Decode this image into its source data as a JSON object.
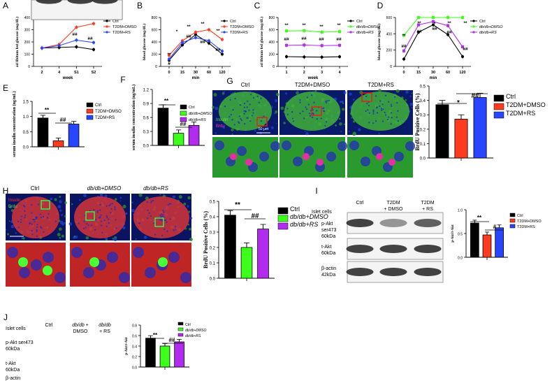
{
  "panels": {
    "A": {
      "letter": "A",
      "ylabel": "ad libitum fed glucose (mg/dL)",
      "xlabel": "week",
      "legend": [
        "Ctrl",
        "T2DM+DMSO",
        "T2DM+RS"
      ]
    },
    "B": {
      "letter": "B",
      "ylabel": "blood glucose (mg/dL)",
      "xlabel": "min",
      "legend": [
        "Ctrl",
        "T2DM+DMSO",
        "T2DM+RS"
      ]
    },
    "C": {
      "letter": "C",
      "ylabel": "ad libitum fed glucose (mg/dL)",
      "xlabel": "week",
      "legend": [
        "Ctrl",
        "db/db+DMSO",
        "db/db+RS"
      ]
    },
    "D": {
      "letter": "D",
      "ylabel": "blood glucose (mg/dL)",
      "xlabel": "min",
      "legend": [
        "Ctrl",
        "db/db+DMSO",
        "db/db+RS"
      ]
    },
    "E": {
      "letter": "E",
      "ylabel": "serum insulin concentration (ng/mL)",
      "legend": [
        "Ctrl",
        "T2DM+DMSO",
        "T2DM+RS"
      ]
    },
    "F": {
      "letter": "F",
      "ylabel": "serum insulin concentration (ng/mL)",
      "legend": [
        "Ctrl",
        "db/db+DMSO",
        "db/db+RS"
      ]
    },
    "G": {
      "letter": "G",
      "cols": [
        "Ctrl",
        "T2DM+DMSO",
        "T2DM+RS"
      ],
      "stain1": "Insulin",
      "stain2": "Brdu",
      "scale": "50 μm",
      "ylabel": "BrdU Positive Cells (%)",
      "legend": [
        "Ctrl",
        "T2DM+DMSO",
        "T2DM+RS"
      ]
    },
    "H": {
      "letter": "H",
      "cols": [
        "Ctrl",
        "db/db+DMSO",
        "db/db+RS"
      ],
      "stain1": "Insulin",
      "stain2": "Brdu",
      "ylabel": "BrdU Positive Cells (%)",
      "legend": [
        "Ctrl",
        "db/db+DMSO",
        "db/db+RS"
      ]
    },
    "I": {
      "letter": "I",
      "header": "Islet cells",
      "cols": [
        "Ctrl",
        "T2DM\n+ DMSO",
        "T2DM\n+ RS"
      ],
      "rows": [
        "p-Akt\nser473\n60kDa",
        "t-Akt\n60kDa",
        "β-actin\n42kDa"
      ],
      "ylabel": "p-Akt/t-Akt",
      "legend": [
        "Ctrl",
        "T2DM+DMSO",
        "T2DM+RS"
      ]
    },
    "J": {
      "letter": "J",
      "header": "Islet cells",
      "cols": [
        "Ctrl",
        "db/db +\nDMSO",
        "db/db\n+ RS"
      ],
      "rows": [
        "p-Akt ser473\n60kDa",
        "t-Akt\n60kDa",
        "β-actin\n42kDa"
      ],
      "ylabel": "p-Akt/t-Akt",
      "legend": [
        "Ctrl",
        "db/db+DMSO",
        "db/db+RS"
      ]
    }
  },
  "colors": {
    "ctrl": "#000000",
    "red": "#ff3b1f",
    "blue": "#2846ff",
    "green": "#3cff1c",
    "purple": "#b22cf0",
    "tissue_green": "#3fb23a",
    "tissue_red": "#d5343a"
  },
  "chart_data": [
    {
      "panel": "A",
      "type": "line",
      "xlabel": "week",
      "ylabel": "ad libitum fed glucose (mg/dL)",
      "categories": [
        "2",
        "4",
        "S1",
        "S2"
      ],
      "ylim": [
        0,
        400
      ],
      "yticks": [
        0,
        100,
        200,
        300,
        400
      ],
      "series": [
        {
          "name": "Ctrl",
          "values": [
            150,
            155,
            160,
            138
          ]
        },
        {
          "name": "T2DM+DMSO",
          "values": [
            150,
            180,
            320,
            350
          ]
        },
        {
          "name": "T2DM+RS",
          "values": [
            150,
            170,
            215,
            195
          ]
        }
      ],
      "annotations": [
        "**",
        "**",
        "##",
        "##"
      ]
    },
    {
      "panel": "B",
      "type": "line",
      "xlabel": "min",
      "ylabel": "blood glucose (mg/dL)",
      "categories": [
        "0",
        "15",
        "30",
        "60",
        "120"
      ],
      "ylim": [
        0,
        800
      ],
      "yticks": [
        0,
        200,
        400,
        600,
        800
      ],
      "series": [
        {
          "name": "Ctrl",
          "values": [
            100,
            350,
            520,
            380,
            200
          ]
        },
        {
          "name": "T2DM+DMSO",
          "values": [
            180,
            420,
            560,
            600,
            440
          ]
        },
        {
          "name": "T2DM+RS",
          "values": [
            120,
            390,
            470,
            420,
            250
          ]
        }
      ],
      "annotations": [
        "**",
        "*",
        "**",
        "**",
        "**",
        "#",
        "##",
        "##",
        "##"
      ]
    },
    {
      "panel": "C",
      "type": "line",
      "xlabel": "week",
      "ylabel": "ad libitum fed glucose (mg/dL)",
      "categories": [
        "1",
        "2",
        "3",
        "4"
      ],
      "ylim": [
        0,
        800
      ],
      "yticks": [
        0,
        200,
        400,
        600,
        800
      ],
      "series": [
        {
          "name": "Ctrl",
          "values": [
            160,
            155,
            152,
            158
          ]
        },
        {
          "name": "db/db+DMSO",
          "values": [
            580,
            585,
            560,
            570
          ]
        },
        {
          "name": "db/db+RS",
          "values": [
            345,
            350,
            340,
            345
          ]
        }
      ],
      "annotations": [
        "**",
        "**",
        "**",
        "**",
        "##",
        "##",
        "##",
        "##"
      ]
    },
    {
      "panel": "D",
      "type": "line",
      "xlabel": "min",
      "ylabel": "blood glucose (mg/dL)",
      "categories": [
        "0",
        "15",
        "30",
        "60",
        "120"
      ],
      "ylim": [
        0,
        600
      ],
      "yticks": [
        0,
        200,
        400,
        600
      ],
      "series": [
        {
          "name": "Ctrl",
          "values": [
            90,
            420,
            510,
            390,
            120
          ]
        },
        {
          "name": "db/db+DMSO",
          "values": [
            380,
            600,
            600,
            600,
            600
          ]
        },
        {
          "name": "db/db+RS",
          "values": [
            190,
            510,
            550,
            500,
            240
          ]
        }
      ],
      "annotations": [
        "**",
        "**",
        "*",
        "**",
        "**",
        "##",
        "##",
        "##",
        "##",
        "##"
      ]
    },
    {
      "panel": "E",
      "type": "bar",
      "ylabel": "serum insulin concentration (ng/mL)",
      "categories": [
        "Ctrl",
        "T2DM+DMSO",
        "T2DM+RS"
      ],
      "values": [
        0.95,
        0.2,
        0.75
      ],
      "ylim": [
        0,
        1.5
      ],
      "yticks": [
        0.0,
        0.5,
        1.0,
        1.5
      ],
      "annotations": [
        "**",
        "##"
      ]
    },
    {
      "panel": "F",
      "type": "bar",
      "ylabel": "serum insulin concentration (ng/mL)",
      "categories": [
        "Ctrl",
        "db/db+DMSO",
        "db/db+RS"
      ],
      "values": [
        0.8,
        0.26,
        0.43
      ],
      "ylim": [
        0,
        1.2
      ],
      "yticks": [
        0.0,
        0.3,
        0.6,
        0.9,
        1.2
      ],
      "annotations": [
        "**",
        "##"
      ]
    },
    {
      "panel": "G",
      "type": "bar",
      "ylabel": "BrdU Positive Cells (%)",
      "categories": [
        "Ctrl",
        "T2DM+DMSO",
        "T2DM+RS"
      ],
      "values": [
        0.37,
        0.27,
        0.42
      ],
      "ylim": [
        0,
        0.5
      ],
      "yticks": [
        0.0,
        0.1,
        0.2,
        0.3,
        0.4,
        0.5
      ],
      "annotations": [
        "*",
        "##"
      ]
    },
    {
      "panel": "H",
      "type": "bar",
      "ylabel": "BrdU Positive Cells (%)",
      "categories": [
        "Ctrl",
        "db/db+DMSO",
        "db/db+RS"
      ],
      "values": [
        0.41,
        0.2,
        0.32
      ],
      "ylim": [
        0,
        0.5
      ],
      "yticks": [
        0.0,
        0.1,
        0.2,
        0.3,
        0.4,
        0.5
      ],
      "annotations": [
        "**",
        "##"
      ]
    },
    {
      "panel": "I",
      "type": "bar",
      "ylabel": "p-Akt/t-Akt",
      "categories": [
        "Ctrl",
        "T2DM+DMSO",
        "T2DM+RS"
      ],
      "values": [
        0.72,
        0.47,
        0.62
      ],
      "ylim": [
        0,
        1.0
      ],
      "yticks": [
        0.0,
        0.5,
        1.0
      ],
      "annotations": [
        "**",
        "#"
      ]
    },
    {
      "panel": "J",
      "type": "bar",
      "ylabel": "p-Akt/t-Akt",
      "categories": [
        "Ctrl",
        "db/db+DMSO",
        "db/db+RS"
      ],
      "values": [
        0.55,
        0.4,
        0.48
      ],
      "ylim": [
        0,
        0.8
      ],
      "yticks": [
        0.0,
        0.2,
        0.4,
        0.6,
        0.8
      ],
      "annotations": [
        "**",
        "##"
      ]
    }
  ]
}
